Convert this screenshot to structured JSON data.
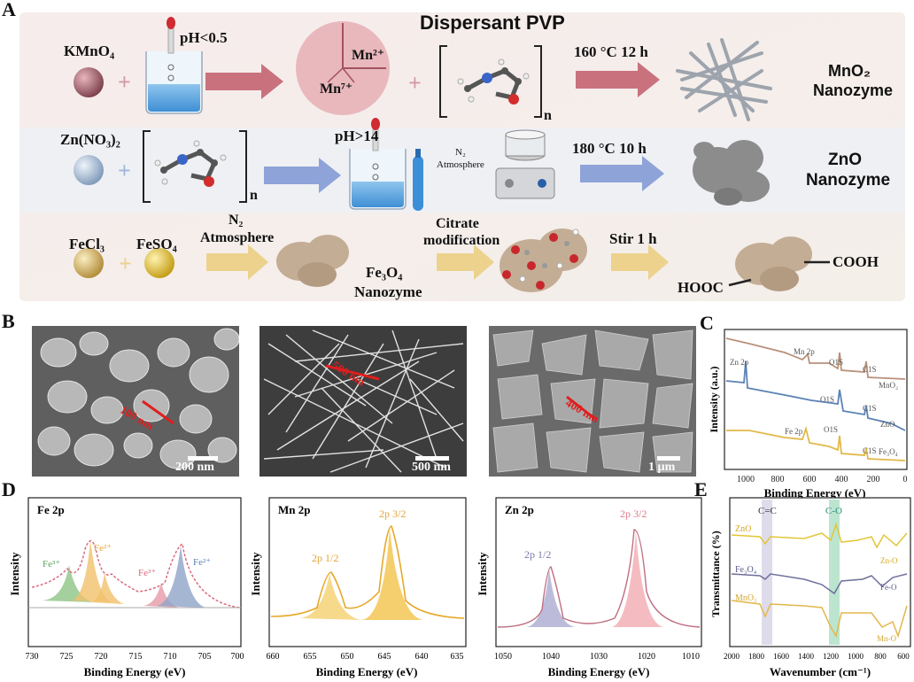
{
  "panelA": {
    "letter": "A",
    "title": "Dispersant PVP",
    "row1": {
      "reagent": "KMnO₄",
      "ph": "pH<0.5",
      "mn_high": "Mn²⁺",
      "mn_low": "Mn⁷⁺",
      "subscript_n": "n",
      "condition": "160 °C 12 h",
      "product_l1": "MnO₂",
      "product_l2": "Nanozyme"
    },
    "row2": {
      "reagent": "Zn(NO₃)₂",
      "subscript_n": "n",
      "ph": "pH>14",
      "atm_l1": "N₂",
      "atm_l2": "Atmosphere",
      "condition": "180 °C 10 h",
      "product_l1": "ZnO",
      "product_l2": "Nanozyme"
    },
    "row3": {
      "reagent1": "FeCl₃",
      "reagent2": "FeSO₄",
      "atm_l1": "N₂",
      "atm_l2": "Atmosphere",
      "intermediate_l1": "Fe₃O₄",
      "intermediate_l2": "Nanozyme",
      "modification_l1": "Citrate",
      "modification_l2": "modification",
      "stir": "Stir 1 h",
      "group_left": "HOOC",
      "group_right": "COOH"
    }
  },
  "panelB": {
    "letter": "B",
    "images": [
      {
        "measure": "100 nm",
        "scalebar": "200 nm"
      },
      {
        "measure": "500 nm",
        "scalebar": "500 nm"
      },
      {
        "measure": "400 nm",
        "scalebar": "1 µm"
      }
    ]
  },
  "panelC": {
    "letter": "C",
    "ylabel": "Intensity (a.u.)",
    "xlabel": "Binding Energy (eV)",
    "ticks": [
      "1000",
      "800",
      "600",
      "400",
      "200",
      "0"
    ],
    "peaks": {
      "zn2p": "Zn 2p",
      "mn2p": "Mn 2p",
      "o1s_a": "O1S",
      "o1s_b": "O1S",
      "o1s_c": "O1S",
      "c1s_a": "C1S",
      "c1s_b": "C1S",
      "c1s_c": "C1S",
      "fe2p": "Fe 2p"
    },
    "series": [
      "MnO₂",
      "ZnO",
      "Fe₃O₄"
    ]
  },
  "panelD": {
    "letter": "D",
    "ylabel": "Intensity",
    "xlabel": "Binding Energy (eV)",
    "fe": {
      "title": "Fe 2p",
      "ticks": [
        "730",
        "725",
        "720",
        "715",
        "710",
        "705",
        "700"
      ],
      "labels": [
        "Fe³⁺",
        "Fe²⁺",
        "Fe³⁺",
        "Fe²⁺"
      ]
    },
    "mn": {
      "title": "Mn 2p",
      "ticks": [
        "660",
        "655",
        "650",
        "645",
        "640",
        "635"
      ],
      "labels": [
        "2p 1/2",
        "2p 3/2"
      ]
    },
    "zn": {
      "title": "Zn 2p",
      "ticks": [
        "1050",
        "1040",
        "1030",
        "1020",
        "1010"
      ],
      "labels": [
        "2p 1/2",
        "2p 3/2"
      ]
    }
  },
  "panelE": {
    "letter": "E",
    "ylabel": "Transmittance (%)",
    "xlabel": "Wavenumber (cm⁻¹)",
    "ticks": [
      "2000",
      "1800",
      "1600",
      "1400",
      "1200",
      "1000",
      "800",
      "600"
    ],
    "bands": {
      "cc": "C=C",
      "co": "C-O"
    },
    "series": [
      "ZnO",
      "Fe₃O₄",
      "MnO₂"
    ],
    "bonds": {
      "zn": "Zn-O",
      "fe": "Fe-O",
      "mn": "Mn-O"
    }
  },
  "colors": {
    "arrow_red": "#c9727e",
    "arrow_blue": "#8ea3d8",
    "arrow_yellow": "#ecd28c",
    "mno2_curve": "#b8917a",
    "zno_curve": "#5b82b5",
    "fe3o4_curve": "#e2b84a",
    "fe_green": "#86c07e",
    "fe_orange": "#f1c16c",
    "fe_pink": "#e79aa8",
    "fe_blue": "#8fa4c8",
    "mn_yellow": "#f2bf3e",
    "zn_purple": "#8f8fc2",
    "zn_pink": "#ec8f98"
  }
}
